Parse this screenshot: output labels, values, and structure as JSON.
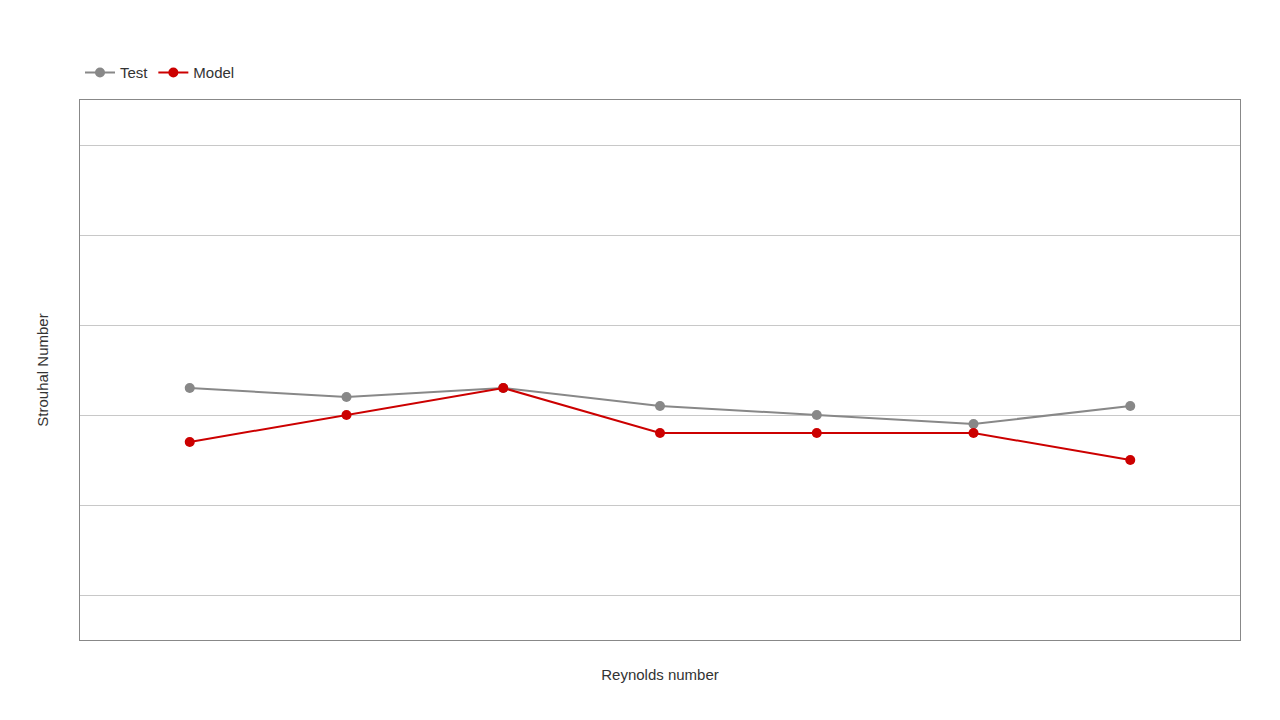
{
  "chart_data": {
    "type": "line",
    "x": [
      1,
      2,
      3,
      4,
      5,
      6,
      7
    ],
    "series": [
      {
        "name": "Test",
        "color": "#888888",
        "values": [
          0.208,
          0.207,
          0.208,
          0.206,
          0.205,
          0.204,
          0.206
        ]
      },
      {
        "name": "Model",
        "color": "#cc0000",
        "values": [
          0.202,
          0.205,
          0.208,
          0.203,
          0.203,
          0.203,
          0.2
        ]
      }
    ],
    "xlabel": "Reynolds number",
    "ylabel": "Strouhal Number",
    "xlim": [
      0.3,
      7.7
    ],
    "ylim": [
      0.18,
      0.24
    ],
    "yticks": [
      0.185,
      0.195,
      0.205,
      0.215,
      0.225,
      0.235
    ],
    "grid": true,
    "tick_labels": false,
    "legend": "top",
    "marker": "circle",
    "line_style": "solid"
  }
}
